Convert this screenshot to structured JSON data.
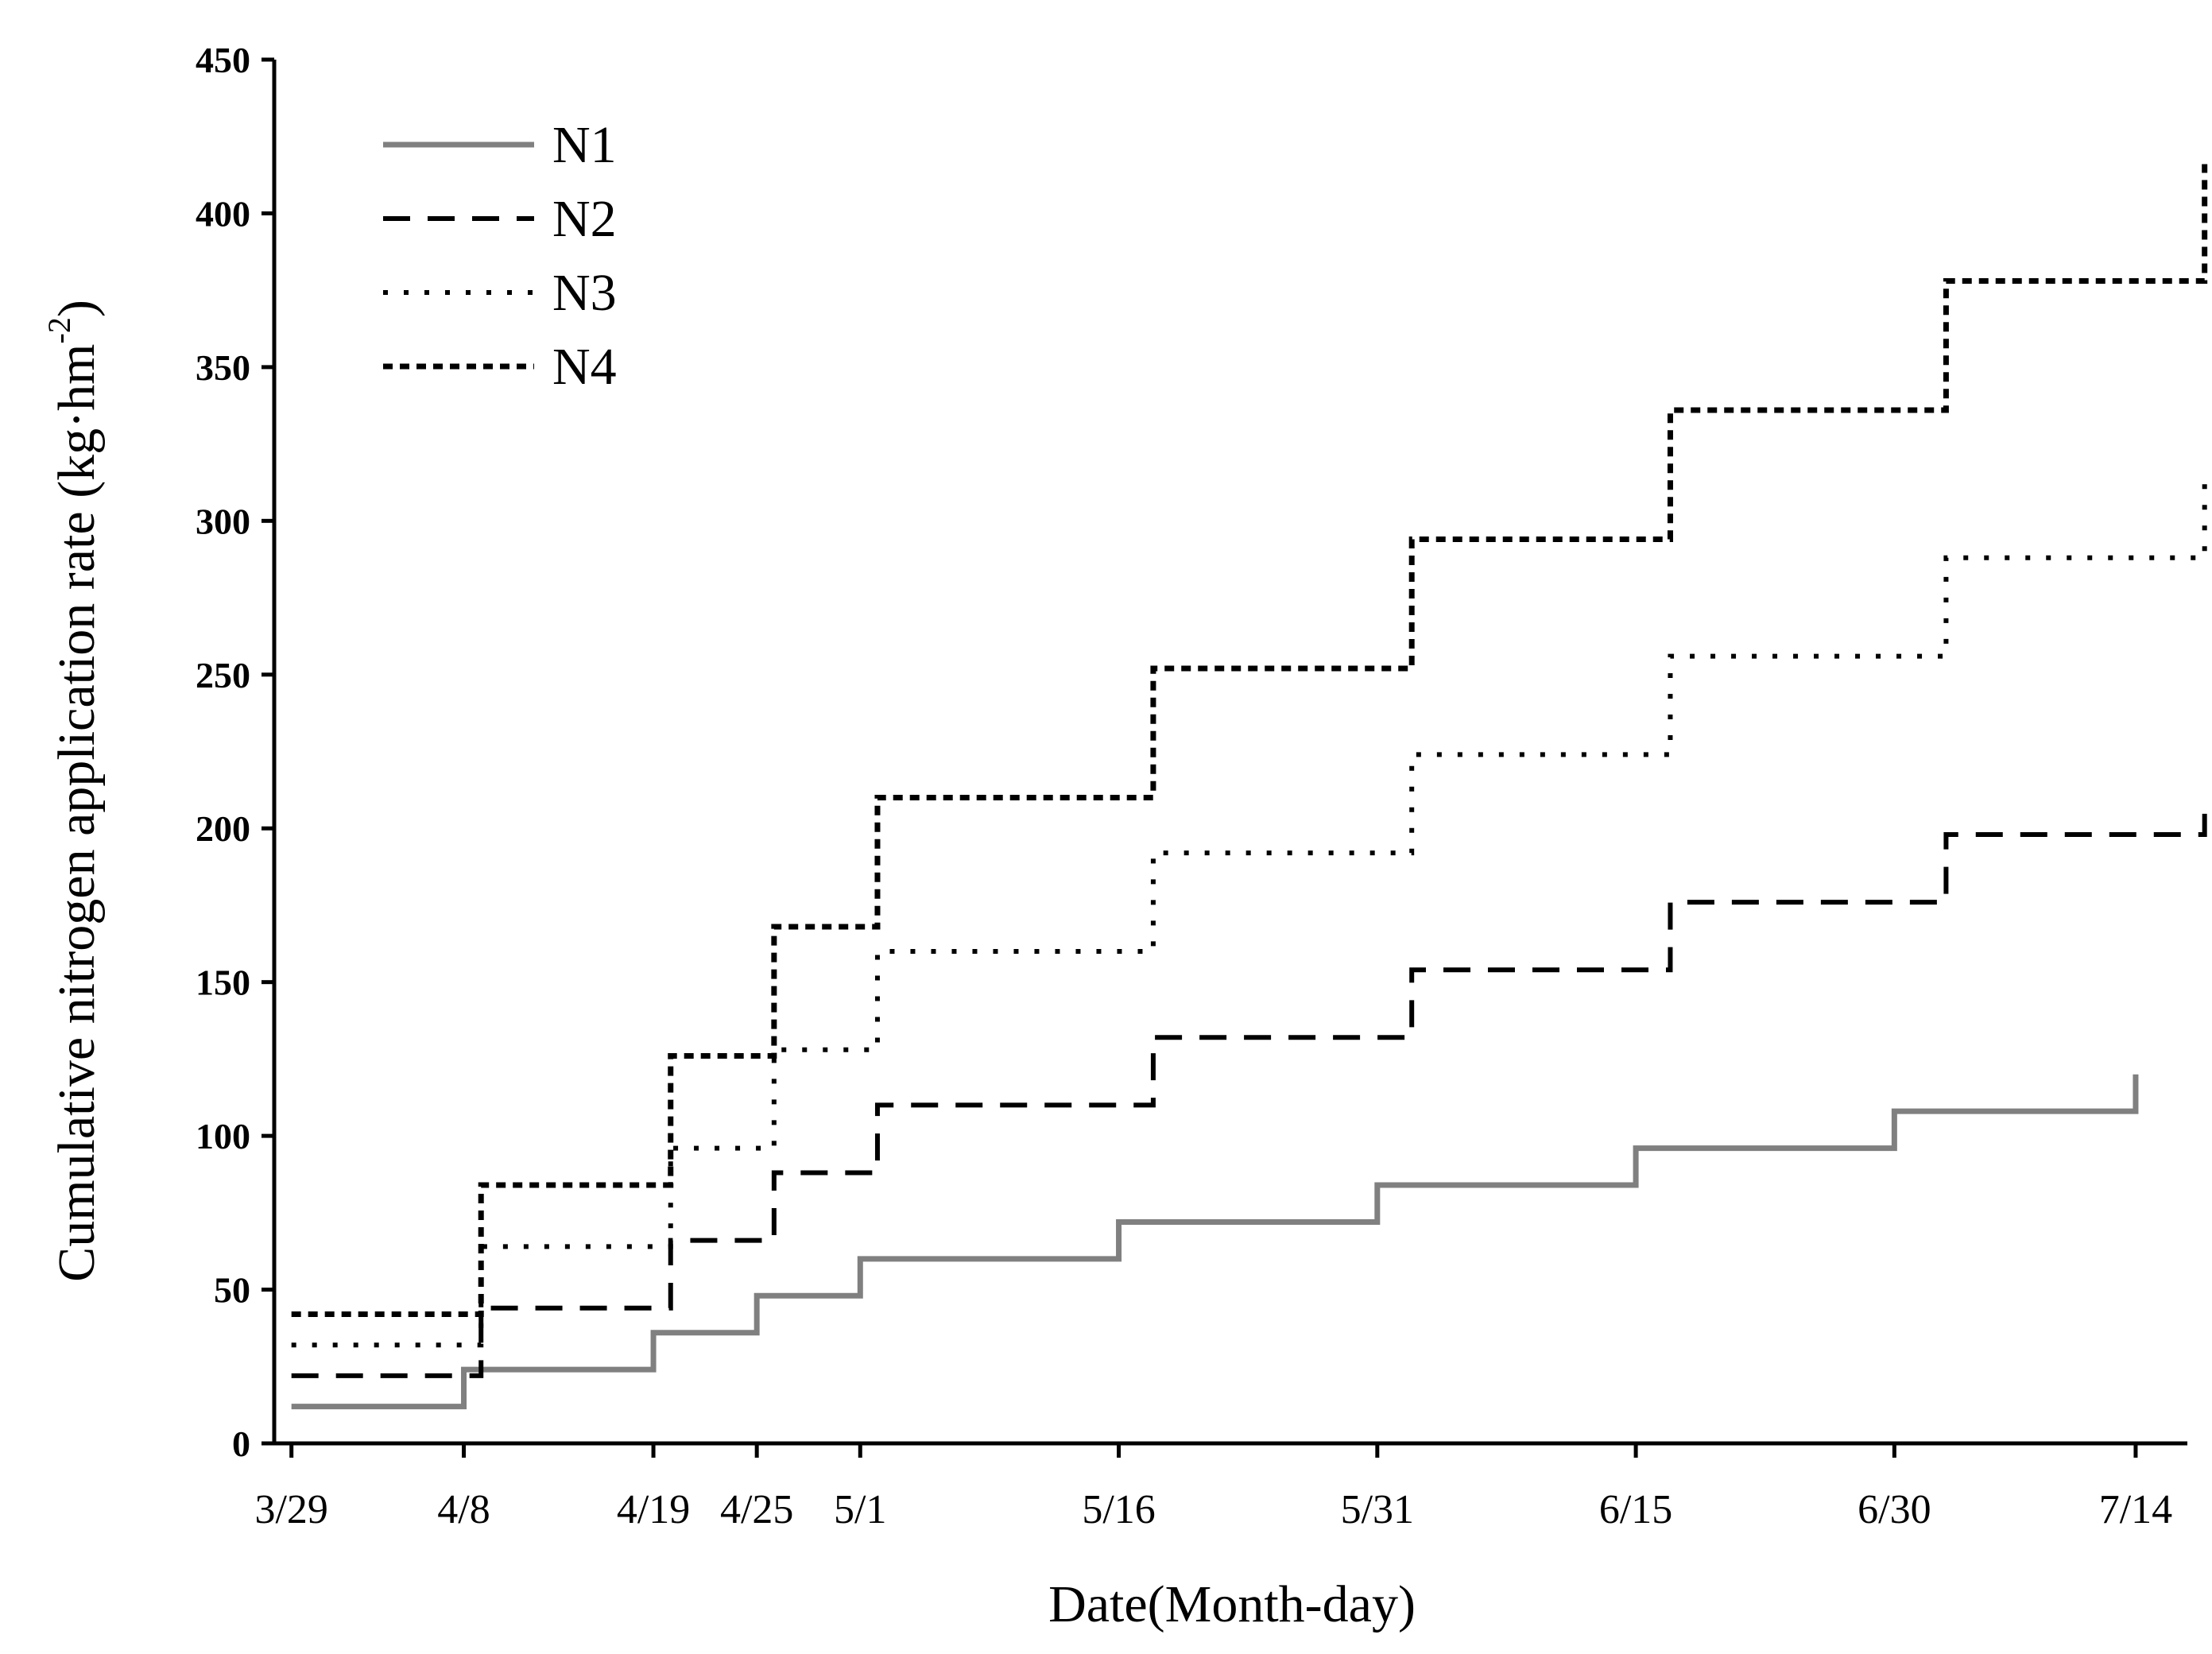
{
  "chart_data": {
    "type": "line",
    "step": "post",
    "xlabel": "Date(Month-day)",
    "ylabel_main": "Cumulative nitrogen application rate (kg·hm",
    "ylabel_sup": "-2",
    "ylabel_close": ")",
    "ylim": [
      0,
      450
    ],
    "yticks": [
      0,
      50,
      100,
      150,
      200,
      250,
      300,
      350,
      400,
      450
    ],
    "xlim": [
      "3/28",
      "7/17"
    ],
    "xticks": [
      "3/29",
      "4/8",
      "4/19",
      "4/25",
      "5/1",
      "5/16",
      "5/31",
      "6/15",
      "6/30",
      "7/14"
    ],
    "xtick_dates": [
      "2021-03-29",
      "2021-04-08",
      "2021-04-19",
      "2021-04-25",
      "2021-05-01",
      "2021-05-16",
      "2021-05-31",
      "2021-06-15",
      "2021-06-30",
      "2021-07-14"
    ],
    "legend_position": "top-left",
    "series": [
      {
        "name": "N1",
        "style": "solid",
        "color": "#808080",
        "x": [
          "2021-03-29",
          "2021-04-08",
          "2021-04-19",
          "2021-04-25",
          "2021-05-01",
          "2021-05-16",
          "2021-05-31",
          "2021-06-15",
          "2021-06-30",
          "2021-07-14"
        ],
        "y": [
          12,
          24,
          36,
          48,
          60,
          72,
          84,
          96,
          108,
          120
        ]
      },
      {
        "name": "N2",
        "style": "dashed",
        "color": "#000000",
        "x": [
          "2021-03-29",
          "2021-04-09",
          "2021-04-20",
          "2021-04-26",
          "2021-05-02",
          "2021-05-18",
          "2021-06-02",
          "2021-06-17",
          "2021-07-03",
          "2021-07-18"
        ],
        "y": [
          22,
          44,
          66,
          88,
          110,
          132,
          154,
          176,
          198,
          209
        ]
      },
      {
        "name": "N3",
        "style": "dotted",
        "color": "#000000",
        "x": [
          "2021-03-29",
          "2021-04-09",
          "2021-04-20",
          "2021-04-26",
          "2021-05-02",
          "2021-05-18",
          "2021-06-02",
          "2021-06-17",
          "2021-07-03",
          "2021-07-18"
        ],
        "y": [
          32,
          64,
          96,
          128,
          160,
          192,
          224,
          256,
          288,
          316
        ]
      },
      {
        "name": "N4",
        "style": "short-dash",
        "color": "#000000",
        "x": [
          "2021-03-29",
          "2021-04-09",
          "2021-04-20",
          "2021-04-26",
          "2021-05-02",
          "2021-05-18",
          "2021-06-02",
          "2021-06-17",
          "2021-07-03",
          "2021-07-18"
        ],
        "y": [
          42,
          84,
          126,
          168,
          210,
          252,
          294,
          336,
          378,
          416
        ]
      }
    ]
  }
}
